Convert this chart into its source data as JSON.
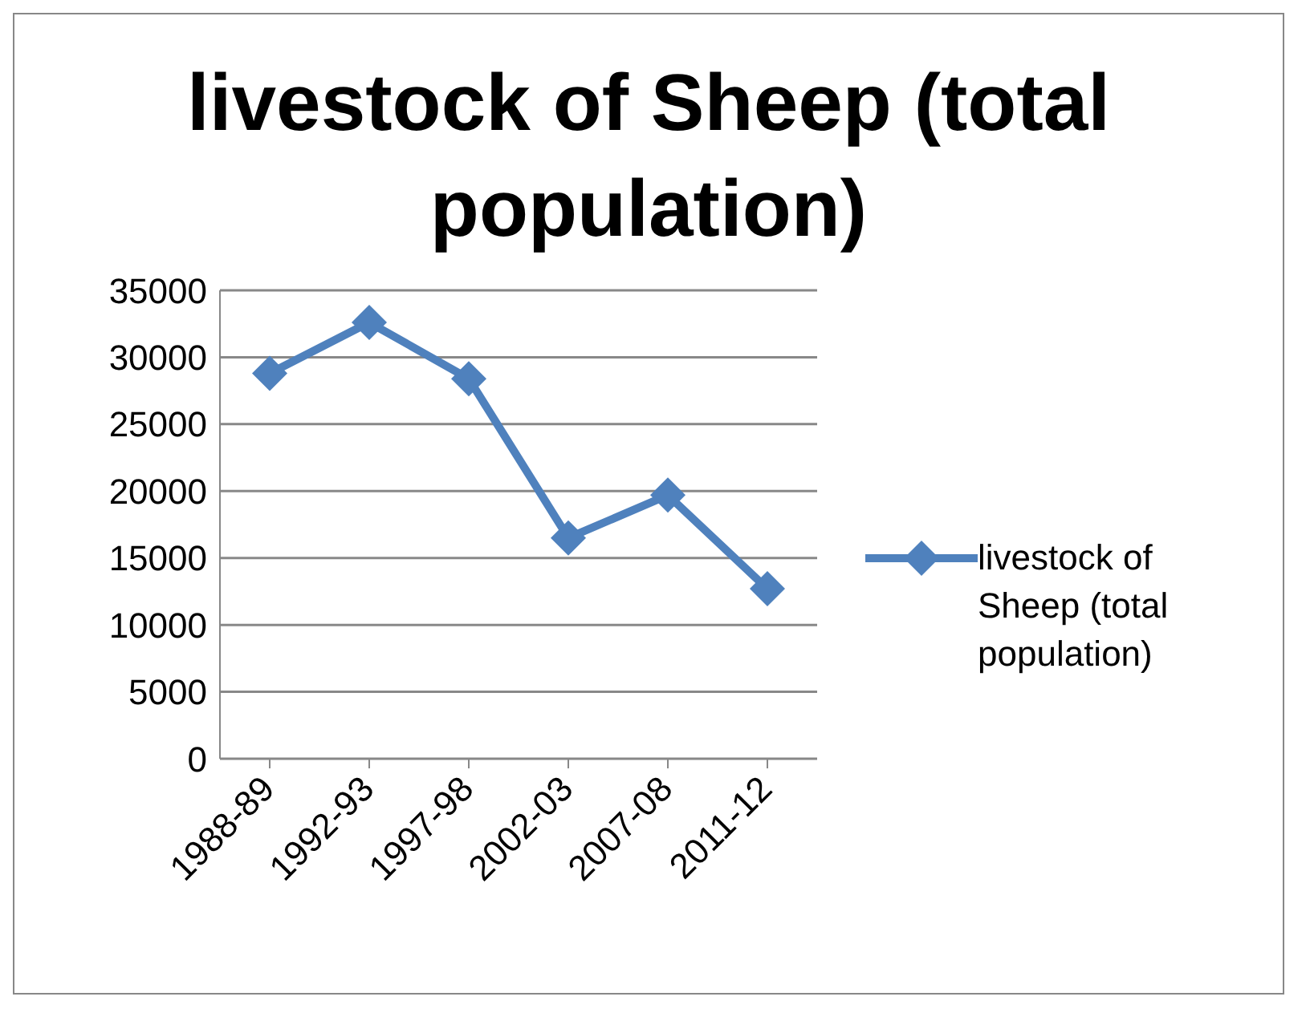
{
  "chart_data": {
    "type": "line",
    "title": "livestock of Sheep (total population)",
    "categories": [
      "1988-89",
      "1992-93",
      "1997-98",
      "2002-03",
      "2007-08",
      "2011-12"
    ],
    "series": [
      {
        "name": "livestock of Sheep (total population)",
        "color": "#4f81bd",
        "values": [
          28800,
          32600,
          28400,
          16500,
          19700,
          12700
        ]
      }
    ],
    "ylim": [
      0,
      35000
    ],
    "yticks": [
      0,
      5000,
      10000,
      15000,
      20000,
      25000,
      30000,
      35000
    ],
    "grid": "y",
    "legend": "right",
    "marker": "diamond",
    "line_style": "solid"
  }
}
